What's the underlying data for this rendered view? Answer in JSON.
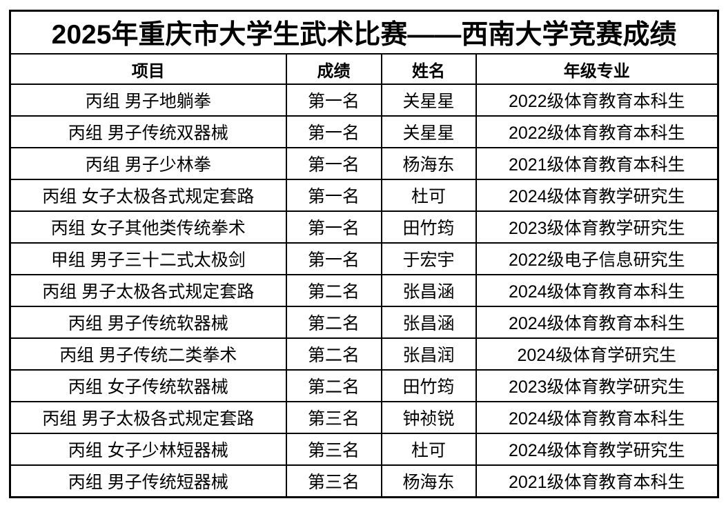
{
  "table": {
    "title": "2025年重庆市大学生武术比赛——西南大学竞赛成绩",
    "columns": [
      "项目",
      "成绩",
      "姓名",
      "年级专业"
    ],
    "rows": [
      [
        "丙组 男子地躺拳",
        "第一名",
        "关星星",
        "2022级体育教育本科生"
      ],
      [
        "丙组 男子传统双器械",
        "第一名",
        "关星星",
        "2022级体育教育本科生"
      ],
      [
        "丙组 男子少林拳",
        "第一名",
        "杨海东",
        "2021级体育教育本科生"
      ],
      [
        "丙组 女子太极各式规定套路",
        "第一名",
        "杜可",
        "2024级体育教学研究生"
      ],
      [
        "丙组 女子其他类传统拳术",
        "第一名",
        "田竹筠",
        "2023级体育教学研究生"
      ],
      [
        "甲组 男子三十二式太极剑",
        "第一名",
        "于宏宇",
        "2022级电子信息研究生"
      ],
      [
        "丙组 男子太极各式规定套路",
        "第二名",
        "张昌涵",
        "2024级体育教育本科生"
      ],
      [
        "丙组 男子传统软器械",
        "第二名",
        "张昌涵",
        "2024级体育教育本科生"
      ],
      [
        "丙组 男子传统二类拳术",
        "第二名",
        "张昌润",
        "2024级体育学研究生"
      ],
      [
        "丙组 女子传统软器械",
        "第二名",
        "田竹筠",
        "2023级体育教学研究生"
      ],
      [
        "丙组 男子太极各式规定套路",
        "第三名",
        "钟祯锐",
        "2024级体育教育本科生"
      ],
      [
        "丙组 女子少林短器械",
        "第三名",
        "杜可",
        "2024级体育教学研究生"
      ],
      [
        "丙组 男子传统短器械",
        "第三名",
        "杨海东",
        "2021级体育教育本科生"
      ]
    ],
    "colors": {
      "text": "#000000",
      "border": "#000000",
      "background": "#ffffff"
    }
  }
}
